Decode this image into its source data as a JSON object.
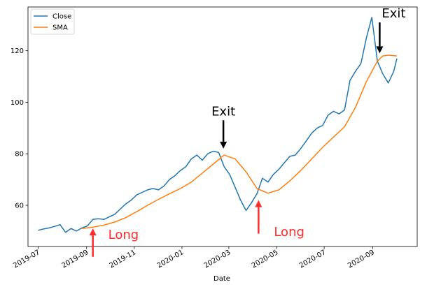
{
  "chart_data": {
    "type": "line",
    "title": "",
    "xlabel": "Date",
    "ylabel": "",
    "x_range": [
      "2019-06-18",
      "2020-10-28"
    ],
    "ylim": [
      44,
      137
    ],
    "x_ticks": [
      "2019-07",
      "2019-09",
      "2019-11",
      "2020-01",
      "2020-03",
      "2020-05",
      "2020-07",
      "2020-09"
    ],
    "y_ticks": [
      60,
      80,
      100,
      120
    ],
    "grid": false,
    "legend_position": "top-left",
    "colors": {
      "Close": "#1f77b4",
      "SMA": "#ff7f0e",
      "exit": "#000000",
      "long": "#ff2a2a"
    },
    "series": [
      {
        "name": "Close",
        "points": [
          [
            "2019-07-01",
            50.3
          ],
          [
            "2019-07-08",
            50.8
          ],
          [
            "2019-07-15",
            51.2
          ],
          [
            "2019-07-22",
            51.8
          ],
          [
            "2019-07-29",
            52.5
          ],
          [
            "2019-08-05",
            49.5
          ],
          [
            "2019-08-12",
            51.0
          ],
          [
            "2019-08-19",
            50.0
          ],
          [
            "2019-08-26",
            51.2
          ],
          [
            "2019-09-02",
            52.0
          ],
          [
            "2019-09-09",
            54.5
          ],
          [
            "2019-09-16",
            54.8
          ],
          [
            "2019-09-23",
            54.5
          ],
          [
            "2019-09-30",
            55.5
          ],
          [
            "2019-10-07",
            56.5
          ],
          [
            "2019-10-14",
            58.5
          ],
          [
            "2019-10-21",
            60.5
          ],
          [
            "2019-10-28",
            62.0
          ],
          [
            "2019-11-04",
            64.0
          ],
          [
            "2019-11-11",
            65.0
          ],
          [
            "2019-11-18",
            66.0
          ],
          [
            "2019-11-25",
            66.5
          ],
          [
            "2019-12-02",
            66.0
          ],
          [
            "2019-12-09",
            67.5
          ],
          [
            "2019-12-16",
            70.0
          ],
          [
            "2019-12-23",
            71.5
          ],
          [
            "2019-12-30",
            73.5
          ],
          [
            "2020-01-06",
            75.0
          ],
          [
            "2020-01-13",
            78.0
          ],
          [
            "2020-01-20",
            79.5
          ],
          [
            "2020-01-27",
            77.5
          ],
          [
            "2020-02-03",
            80.0
          ],
          [
            "2020-02-10",
            81.0
          ],
          [
            "2020-02-17",
            80.5
          ],
          [
            "2020-02-24",
            75.0
          ],
          [
            "2020-03-02",
            72.0
          ],
          [
            "2020-03-09",
            67.0
          ],
          [
            "2020-03-16",
            62.0
          ],
          [
            "2020-03-23",
            58.0
          ],
          [
            "2020-03-30",
            61.0
          ],
          [
            "2020-04-06",
            64.5
          ],
          [
            "2020-04-13",
            70.5
          ],
          [
            "2020-04-20",
            69.0
          ],
          [
            "2020-04-27",
            72.0
          ],
          [
            "2020-05-04",
            74.0
          ],
          [
            "2020-05-11",
            76.5
          ],
          [
            "2020-05-18",
            79.0
          ],
          [
            "2020-05-25",
            79.5
          ],
          [
            "2020-06-01",
            82.0
          ],
          [
            "2020-06-08",
            85.0
          ],
          [
            "2020-06-15",
            88.0
          ],
          [
            "2020-06-22",
            90.0
          ],
          [
            "2020-06-29",
            91.0
          ],
          [
            "2020-07-06",
            95.0
          ],
          [
            "2020-07-13",
            96.5
          ],
          [
            "2020-07-20",
            95.5
          ],
          [
            "2020-07-27",
            97.0
          ],
          [
            "2020-08-03",
            108.5
          ],
          [
            "2020-08-10",
            112.0
          ],
          [
            "2020-08-17",
            115.0
          ],
          [
            "2020-08-24",
            125.0
          ],
          [
            "2020-08-31",
            133.0
          ],
          [
            "2020-09-07",
            116.0
          ],
          [
            "2020-09-14",
            111.0
          ],
          [
            "2020-09-21",
            107.5
          ],
          [
            "2020-09-28",
            112.0
          ],
          [
            "2020-10-02",
            117.0
          ]
        ]
      },
      {
        "name": "SMA",
        "points": [
          [
            "2019-08-26",
            51.0
          ],
          [
            "2019-09-09",
            51.5
          ],
          [
            "2019-09-23",
            52.3
          ],
          [
            "2019-10-07",
            53.5
          ],
          [
            "2019-10-21",
            55.2
          ],
          [
            "2019-11-04",
            57.5
          ],
          [
            "2019-11-18",
            60.0
          ],
          [
            "2019-12-02",
            62.3
          ],
          [
            "2019-12-16",
            64.5
          ],
          [
            "2019-12-30",
            66.5
          ],
          [
            "2020-01-13",
            69.0
          ],
          [
            "2020-01-27",
            72.5
          ],
          [
            "2020-02-10",
            76.0
          ],
          [
            "2020-02-24",
            79.5
          ],
          [
            "2020-03-09",
            78.0
          ],
          [
            "2020-03-23",
            73.0
          ],
          [
            "2020-04-06",
            66.5
          ],
          [
            "2020-04-20",
            64.7
          ],
          [
            "2020-05-04",
            66.0
          ],
          [
            "2020-05-18",
            69.5
          ],
          [
            "2020-06-01",
            73.5
          ],
          [
            "2020-06-15",
            78.0
          ],
          [
            "2020-06-29",
            82.5
          ],
          [
            "2020-07-13",
            86.5
          ],
          [
            "2020-07-27",
            90.5
          ],
          [
            "2020-08-10",
            98.0
          ],
          [
            "2020-08-24",
            108.0
          ],
          [
            "2020-09-07",
            116.0
          ],
          [
            "2020-09-14",
            118.0
          ],
          [
            "2020-09-21",
            118.3
          ],
          [
            "2020-10-02",
            118.0
          ]
        ]
      }
    ],
    "annotations": [
      {
        "text": "Exit",
        "kind": "exit",
        "from": [
          "2020-02-23",
          93
        ],
        "to": [
          "2020-02-23",
          82
        ]
      },
      {
        "text": "Exit",
        "kind": "exit",
        "from": [
          "2020-09-10",
          131
        ],
        "to": [
          "2020-09-10",
          119
        ]
      },
      {
        "text": "Long",
        "kind": "long",
        "from": [
          "2019-09-09",
          40
        ],
        "to": [
          "2019-09-09",
          51
        ]
      },
      {
        "text": "Long",
        "kind": "long",
        "from": [
          "2020-04-08",
          49
        ],
        "to": [
          "2020-04-08",
          62
        ]
      }
    ]
  }
}
